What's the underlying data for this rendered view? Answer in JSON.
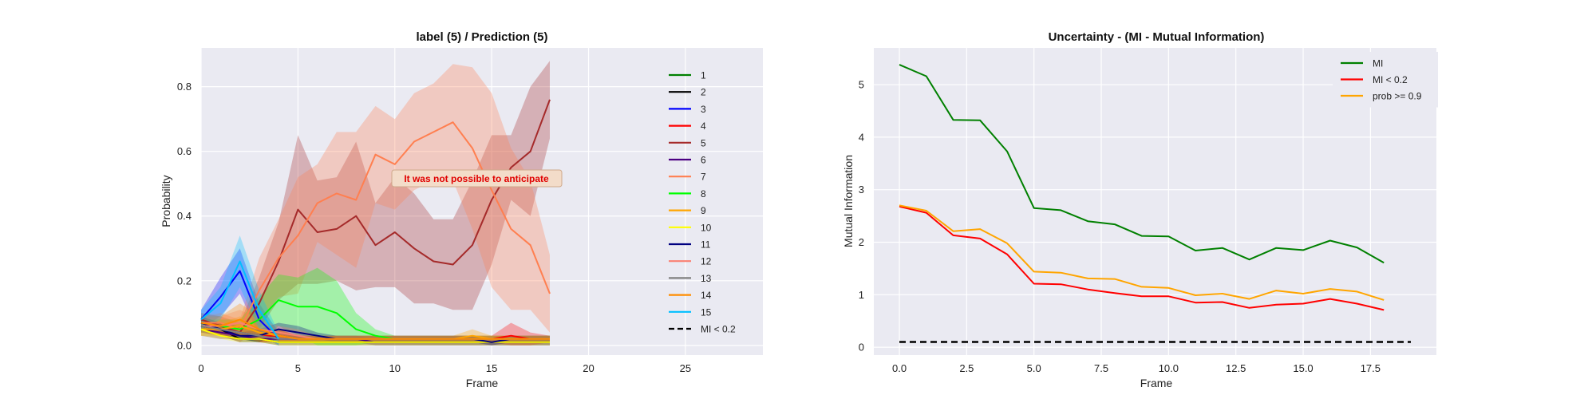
{
  "chart_data": [
    {
      "type": "line",
      "title": "label (5) / Prediction (5)",
      "xlabel": "Frame",
      "ylabel": "Probability",
      "xlim": [
        0,
        29
      ],
      "ylim": [
        -0.03,
        0.92
      ],
      "xticks": [
        0,
        5,
        10,
        15,
        20,
        25
      ],
      "yticks": [
        0.0,
        0.2,
        0.4,
        0.6,
        0.8
      ],
      "ytick_labels": [
        "0.0",
        "0.2",
        "0.4",
        "0.6",
        "0.8"
      ],
      "grid": true,
      "legend_position": "right",
      "annotation": {
        "text": "It was not possible to anticipate",
        "x": 14.8,
        "y": 0.51,
        "color": "#e00000"
      },
      "series": [
        {
          "name": "1",
          "color": "#008000",
          "x": [
            0,
            1,
            2,
            3,
            4,
            5,
            6,
            7,
            8,
            9,
            10,
            11,
            12,
            13,
            14,
            15,
            16,
            17,
            18
          ],
          "values": [
            0.07,
            0.05,
            0.04,
            0.03,
            0.03,
            0.02,
            0.02,
            0.02,
            0.02,
            0.02,
            0.02,
            0.02,
            0.02,
            0.02,
            0.02,
            0.02,
            0.02,
            0.02,
            0.02
          ],
          "band": [
            0.02,
            0.02,
            0.02,
            0.02,
            0.01,
            0.01,
            0.01,
            0.01,
            0.01,
            0.01,
            0.01,
            0.01,
            0.01,
            0.01,
            0.01,
            0.01,
            0.01,
            0.01,
            0.01
          ]
        },
        {
          "name": "2",
          "color": "#000000",
          "x": [
            0,
            1,
            2,
            3,
            4,
            5,
            6,
            7,
            8,
            9,
            10,
            11,
            12,
            13,
            14,
            15,
            16,
            17,
            18
          ],
          "values": [
            0.06,
            0.05,
            0.02,
            0.02,
            0.01,
            0.01,
            0.01,
            0.01,
            0.01,
            0.01,
            0.01,
            0.01,
            0.01,
            0.01,
            0.01,
            0.01,
            0.01,
            0.01,
            0.01
          ],
          "band": [
            0.02,
            0.02,
            0.01,
            0.01,
            0.01,
            0.01,
            0.01,
            0.01,
            0.01,
            0.01,
            0.01,
            0.01,
            0.01,
            0.01,
            0.01,
            0.01,
            0.01,
            0.01,
            0.01
          ]
        },
        {
          "name": "3",
          "color": "#0000ff",
          "x": [
            0,
            1,
            2,
            3,
            4
          ],
          "values": [
            0.08,
            0.15,
            0.23,
            0.08,
            0.02
          ],
          "band": [
            0.03,
            0.06,
            0.07,
            0.05,
            0.02
          ]
        },
        {
          "name": "4",
          "color": "#ff0000",
          "x": [
            0,
            1,
            2,
            3,
            4,
            5,
            6,
            7,
            8,
            9,
            10,
            11,
            12,
            13,
            14,
            15,
            16,
            17,
            18
          ],
          "values": [
            0.06,
            0.05,
            0.04,
            0.03,
            0.03,
            0.02,
            0.02,
            0.02,
            0.02,
            0.02,
            0.02,
            0.02,
            0.02,
            0.02,
            0.02,
            0.02,
            0.03,
            0.02,
            0.02
          ],
          "band": [
            0.02,
            0.02,
            0.02,
            0.02,
            0.02,
            0.01,
            0.01,
            0.01,
            0.01,
            0.01,
            0.01,
            0.01,
            0.01,
            0.01,
            0.01,
            0.01,
            0.04,
            0.02,
            0.01
          ]
        },
        {
          "name": "5",
          "color": "#a52a2a",
          "x": [
            0,
            1,
            2,
            3,
            4,
            5,
            6,
            7,
            8,
            9,
            10,
            11,
            12,
            13,
            14,
            15,
            16,
            17,
            18
          ],
          "values": [
            0.08,
            0.06,
            0.04,
            0.13,
            0.26,
            0.42,
            0.35,
            0.36,
            0.4,
            0.31,
            0.35,
            0.3,
            0.26,
            0.25,
            0.31,
            0.45,
            0.55,
            0.6,
            0.76
          ],
          "band": [
            0.02,
            0.03,
            0.03,
            0.08,
            0.12,
            0.23,
            0.16,
            0.16,
            0.23,
            0.13,
            0.17,
            0.17,
            0.13,
            0.14,
            0.2,
            0.2,
            0.1,
            0.2,
            0.12
          ]
        },
        {
          "name": "6",
          "color": "#4b0082",
          "x": [
            0,
            1,
            2,
            3,
            4,
            5,
            6,
            7,
            8,
            9,
            10,
            11,
            12,
            13,
            14,
            15,
            16,
            17,
            18
          ],
          "values": [
            0.05,
            0.04,
            0.03,
            0.02,
            0.02,
            0.02,
            0.02,
            0.02,
            0.02,
            0.01,
            0.01,
            0.01,
            0.01,
            0.01,
            0.01,
            0.01,
            0.01,
            0.01,
            0.01
          ],
          "band": [
            0.02,
            0.02,
            0.01,
            0.01,
            0.01,
            0.01,
            0.01,
            0.01,
            0.01,
            0.01,
            0.01,
            0.01,
            0.01,
            0.01,
            0.01,
            0.01,
            0.01,
            0.01,
            0.01
          ]
        },
        {
          "name": "7",
          "color": "#ff7f50",
          "x": [
            0,
            1,
            2,
            3,
            4,
            5,
            6,
            7,
            8,
            9,
            10,
            11,
            12,
            13,
            14,
            15,
            16,
            17,
            18
          ],
          "values": [
            0.07,
            0.07,
            0.05,
            0.17,
            0.27,
            0.34,
            0.44,
            0.47,
            0.45,
            0.59,
            0.56,
            0.63,
            0.66,
            0.69,
            0.61,
            0.48,
            0.36,
            0.31,
            0.16
          ],
          "band": [
            0.02,
            0.03,
            0.03,
            0.1,
            0.12,
            0.18,
            0.12,
            0.19,
            0.21,
            0.15,
            0.14,
            0.15,
            0.15,
            0.18,
            0.25,
            0.3,
            0.25,
            0.2,
            0.12
          ]
        },
        {
          "name": "8",
          "color": "#00ff00",
          "x": [
            0,
            1,
            2,
            3,
            4,
            5,
            6,
            7,
            8,
            9,
            10,
            11,
            12,
            13,
            14,
            15,
            16,
            17,
            18
          ],
          "values": [
            0.06,
            0.06,
            0.05,
            0.08,
            0.14,
            0.12,
            0.12,
            0.1,
            0.05,
            0.03,
            0.02,
            0.02,
            0.02,
            0.02,
            0.02,
            0.02,
            0.02,
            0.02,
            0.02
          ],
          "band": [
            0.02,
            0.02,
            0.03,
            0.07,
            0.08,
            0.09,
            0.12,
            0.1,
            0.05,
            0.02,
            0.01,
            0.01,
            0.01,
            0.01,
            0.01,
            0.01,
            0.01,
            0.01,
            0.01
          ]
        },
        {
          "name": "9",
          "color": "#ffa500",
          "x": [
            0,
            1,
            2,
            3,
            4,
            5,
            6,
            7,
            8,
            9,
            10,
            11,
            12,
            13,
            14,
            15,
            16,
            17,
            18
          ],
          "values": [
            0.05,
            0.05,
            0.06,
            0.04,
            0.03,
            0.02,
            0.02,
            0.02,
            0.02,
            0.02,
            0.02,
            0.02,
            0.02,
            0.02,
            0.03,
            0.02,
            0.02,
            0.02,
            0.02
          ],
          "band": [
            0.02,
            0.02,
            0.03,
            0.02,
            0.02,
            0.01,
            0.01,
            0.01,
            0.01,
            0.01,
            0.01,
            0.01,
            0.01,
            0.01,
            0.02,
            0.01,
            0.01,
            0.01,
            0.01
          ]
        },
        {
          "name": "10",
          "color": "#ffff00",
          "x": [
            0,
            1,
            2,
            3,
            4,
            5,
            6,
            7,
            8,
            9,
            10,
            11,
            12,
            13,
            14,
            15,
            16,
            17,
            18
          ],
          "values": [
            0.05,
            0.03,
            0.02,
            0.02,
            0.01,
            0.01,
            0.01,
            0.01,
            0.01,
            0.01,
            0.01,
            0.01,
            0.01,
            0.01,
            0.01,
            0.01,
            0.01,
            0.01,
            0.01
          ],
          "band": [
            0.02,
            0.01,
            0.01,
            0.01,
            0.01,
            0.01,
            0.01,
            0.01,
            0.01,
            0.01,
            0.01,
            0.01,
            0.01,
            0.01,
            0.01,
            0.01,
            0.01,
            0.01,
            0.01
          ]
        },
        {
          "name": "11",
          "color": "#000080",
          "x": [
            0,
            1,
            2,
            3,
            4,
            5,
            6,
            7,
            8,
            9,
            10,
            11,
            12,
            13,
            14,
            15,
            16,
            17,
            18
          ],
          "values": [
            0.07,
            0.05,
            0.03,
            0.03,
            0.05,
            0.04,
            0.03,
            0.02,
            0.02,
            0.02,
            0.02,
            0.02,
            0.02,
            0.02,
            0.02,
            0.01,
            0.02,
            0.02,
            0.02
          ],
          "band": [
            0.02,
            0.02,
            0.01,
            0.02,
            0.02,
            0.02,
            0.01,
            0.01,
            0.01,
            0.01,
            0.01,
            0.01,
            0.01,
            0.01,
            0.01,
            0.01,
            0.01,
            0.01,
            0.01
          ]
        },
        {
          "name": "12",
          "color": "#fa8072",
          "x": [
            0,
            1,
            2,
            3,
            4,
            5,
            6,
            7,
            8,
            9,
            10,
            11,
            12,
            13,
            14,
            15,
            16,
            17,
            18
          ],
          "values": [
            0.06,
            0.06,
            0.07,
            0.05,
            0.04,
            0.03,
            0.02,
            0.02,
            0.02,
            0.02,
            0.02,
            0.02,
            0.02,
            0.02,
            0.02,
            0.02,
            0.02,
            0.02,
            0.02
          ],
          "band": [
            0.02,
            0.03,
            0.04,
            0.03,
            0.02,
            0.02,
            0.01,
            0.01,
            0.01,
            0.01,
            0.01,
            0.01,
            0.01,
            0.01,
            0.01,
            0.01,
            0.01,
            0.01,
            0.01
          ]
        },
        {
          "name": "13",
          "color": "#808080",
          "x": [
            0,
            1,
            2,
            3,
            4,
            5,
            6,
            7,
            8,
            9,
            10,
            11,
            12,
            13,
            14,
            15,
            16,
            17,
            18
          ],
          "values": [
            0.06,
            0.05,
            0.04,
            0.03,
            0.02,
            0.02,
            0.02,
            0.02,
            0.02,
            0.02,
            0.02,
            0.02,
            0.02,
            0.02,
            0.02,
            0.02,
            0.02,
            0.02,
            0.02
          ],
          "band": [
            0.02,
            0.02,
            0.02,
            0.01,
            0.01,
            0.01,
            0.01,
            0.01,
            0.01,
            0.01,
            0.01,
            0.01,
            0.01,
            0.01,
            0.01,
            0.01,
            0.01,
            0.01,
            0.01
          ]
        },
        {
          "name": "14",
          "color": "#ff8c00",
          "x": [
            0,
            1,
            2,
            3,
            4,
            5,
            6,
            7,
            8,
            9,
            10,
            11,
            12,
            13,
            14,
            15,
            16,
            17,
            18
          ],
          "values": [
            0.07,
            0.06,
            0.08,
            0.05,
            0.03,
            0.02,
            0.02,
            0.02,
            0.02,
            0.02,
            0.02,
            0.02,
            0.02,
            0.02,
            0.02,
            0.02,
            0.02,
            0.02,
            0.02
          ],
          "band": [
            0.02,
            0.03,
            0.05,
            0.04,
            0.02,
            0.01,
            0.01,
            0.01,
            0.01,
            0.01,
            0.01,
            0.01,
            0.01,
            0.01,
            0.01,
            0.01,
            0.01,
            0.01,
            0.01
          ]
        },
        {
          "name": "15",
          "color": "#00bfff",
          "x": [
            0,
            1,
            2,
            3,
            4
          ],
          "values": [
            0.08,
            0.13,
            0.26,
            0.11,
            0.02
          ],
          "band": [
            0.03,
            0.05,
            0.08,
            0.06,
            0.02
          ]
        },
        {
          "name": "MI < 0.2",
          "color": "#000000",
          "dashed": true,
          "x": [],
          "values": []
        }
      ]
    },
    {
      "type": "line",
      "title": "Uncertainty - (MI - Mutual Information)",
      "xlabel": "Frame",
      "ylabel": "Mutual Information",
      "xlim": [
        -0.95,
        19.95
      ],
      "ylim": [
        -0.15,
        5.7
      ],
      "xticks": [
        0.0,
        2.5,
        5.0,
        7.5,
        10.0,
        12.5,
        15.0,
        17.5
      ],
      "xtick_labels": [
        "0.0",
        "2.5",
        "5.0",
        "7.5",
        "10.0",
        "12.5",
        "15.0",
        "17.5"
      ],
      "yticks": [
        0,
        1,
        2,
        3,
        4,
        5
      ],
      "grid": true,
      "legend_position": "top-right",
      "series": [
        {
          "name": "MI",
          "color": "#008000",
          "x": [
            0,
            1,
            2,
            3,
            4,
            5,
            6,
            7,
            8,
            9,
            10,
            11,
            12,
            13,
            14,
            15,
            16,
            17,
            18
          ],
          "values": [
            5.38,
            5.16,
            4.33,
            4.32,
            3.73,
            2.65,
            2.61,
            2.4,
            2.34,
            2.12,
            2.11,
            1.84,
            1.89,
            1.67,
            1.89,
            1.85,
            2.03,
            1.9,
            1.61
          ]
        },
        {
          "name": "MI < 0.2",
          "color": "#ff0000",
          "x": [
            0,
            1,
            2,
            3,
            4,
            5,
            6,
            7,
            8,
            9,
            10,
            11,
            12,
            13,
            14,
            15,
            16,
            17,
            18
          ],
          "values": [
            2.68,
            2.56,
            2.13,
            2.07,
            1.77,
            1.21,
            1.2,
            1.1,
            1.03,
            0.97,
            0.97,
            0.85,
            0.86,
            0.75,
            0.81,
            0.83,
            0.92,
            0.83,
            0.71
          ]
        },
        {
          "name": "prob >= 0.9",
          "color": "#ffa500",
          "x": [
            0,
            1,
            2,
            3,
            4,
            5,
            6,
            7,
            8,
            9,
            10,
            11,
            12,
            13,
            14,
            15,
            16,
            17,
            18
          ],
          "values": [
            2.7,
            2.6,
            2.21,
            2.25,
            1.98,
            1.44,
            1.42,
            1.31,
            1.3,
            1.15,
            1.13,
            0.99,
            1.02,
            0.92,
            1.08,
            1.02,
            1.11,
            1.06,
            0.9
          ]
        },
        {
          "name": "",
          "color": "#000000",
          "dashed": true,
          "legend": false,
          "x": [
            0,
            19
          ],
          "values": [
            0.1,
            0.1
          ]
        }
      ]
    }
  ]
}
